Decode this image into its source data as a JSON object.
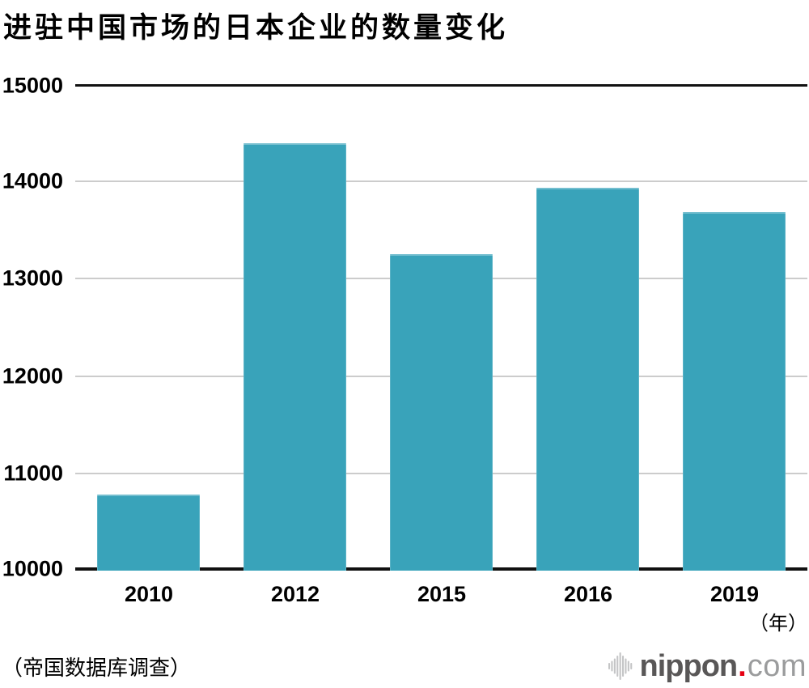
{
  "title": "进驻中国市场的日本企业的数量变化",
  "source_note": "（帝国数据库调查）",
  "axis_unit_label": "（年）",
  "logo": {
    "name": "nippon",
    "dot": ".",
    "tld": "com",
    "icon": "soundwave-icon"
  },
  "colors": {
    "bar": "#39a3ba",
    "grid": "#cccccc",
    "axis": "#111111",
    "text": "#000000",
    "logo_name": "#595757",
    "logo_dot": "#e60012",
    "logo_tld": "#9b9c9d",
    "logo_icon": "#c4c5c6"
  },
  "chart_data": {
    "type": "bar",
    "title": "进驻中国市场的日本企业的数量变化",
    "categories": [
      "2010",
      "2012",
      "2015",
      "2016",
      "2019"
    ],
    "values": [
      10778,
      14394,
      13256,
      13934,
      13685
    ],
    "xlabel": "（年）",
    "ylabel": "",
    "ylim": [
      10000,
      15000
    ],
    "yticks": [
      10000,
      11000,
      12000,
      13000,
      14000,
      15000
    ],
    "grid": true,
    "legend": "none",
    "bar_color": "#39a3ba"
  }
}
